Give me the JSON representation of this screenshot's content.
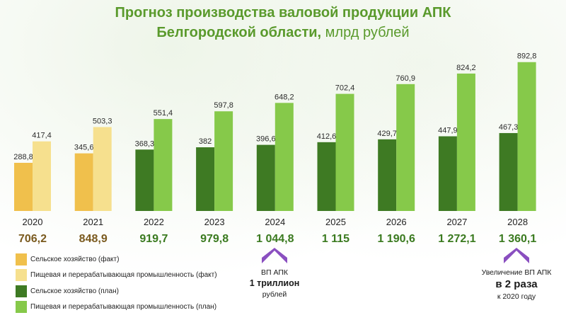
{
  "title": {
    "part1": "Прогноз производства валовой продукции АПК",
    "part2_bold": "Белгородской области,",
    "part2_rest": " млрд рублей"
  },
  "colors": {
    "agri_fact": "#f0c04c",
    "food_fact": "#f6e08e",
    "agri_plan": "#3e7a23",
    "food_plan": "#86c94a",
    "total_fact": "#7a5a1e",
    "total_plan": "#3a7a1f",
    "arrow": "#8a4fc0"
  },
  "chart_data": {
    "type": "bar",
    "categories": [
      "2020",
      "2021",
      "2022",
      "2023",
      "2024",
      "2025",
      "2026",
      "2027",
      "2028"
    ],
    "series": [
      {
        "name": "Сельское хозяйство (факт)",
        "values": [
          288.8,
          345.6,
          null,
          null,
          null,
          null,
          null,
          null,
          null
        ],
        "labels": [
          "288,8",
          "345,6",
          "",
          "",
          "",
          "",
          "",
          "",
          ""
        ]
      },
      {
        "name": "Пищевая и перерабатывающая промышленность (факт)",
        "values": [
          417.4,
          503.3,
          null,
          null,
          null,
          null,
          null,
          null,
          null
        ],
        "labels": [
          "417,4",
          "503,3",
          "",
          "",
          "",
          "",
          "",
          "",
          ""
        ]
      },
      {
        "name": "Сельское хозяйство (план)",
        "values": [
          null,
          null,
          368.3,
          382,
          396.6,
          412.6,
          429.7,
          447.9,
          467.3
        ],
        "labels": [
          "",
          "",
          "368,3",
          "382",
          "396,6",
          "412,6",
          "429,7",
          "447,9",
          "467,3"
        ]
      },
      {
        "name": "Пищевая и перерабатывающая промышленность (план)",
        "values": [
          null,
          null,
          551.4,
          597.8,
          648.2,
          702.4,
          760.9,
          824.2,
          892.8
        ],
        "labels": [
          "",
          "",
          "551,4",
          "597,8",
          "648,2",
          "702,4",
          "760,9",
          "824,2",
          "892,8"
        ]
      }
    ],
    "totals": [
      706.2,
      848.9,
      919.7,
      979.8,
      1044.8,
      1115,
      1190.6,
      1272.1,
      1360.1
    ],
    "total_labels": [
      "706,2",
      "848,9",
      "919,7",
      "979,8",
      "1 044,8",
      "1 115",
      "1 190,6",
      "1 272,1",
      "1 360,1"
    ],
    "ylim": [
      0,
      900
    ],
    "grid": false,
    "legend_position": "bottom-left"
  },
  "annotations": {
    "a2024": {
      "line1": "ВП АПК",
      "line2": "1 триллион",
      "line3": "рублей"
    },
    "a2028": {
      "line1": "Увеличение ВП АПК",
      "line2": "в 2 раза",
      "line3": "к 2020 году"
    }
  }
}
